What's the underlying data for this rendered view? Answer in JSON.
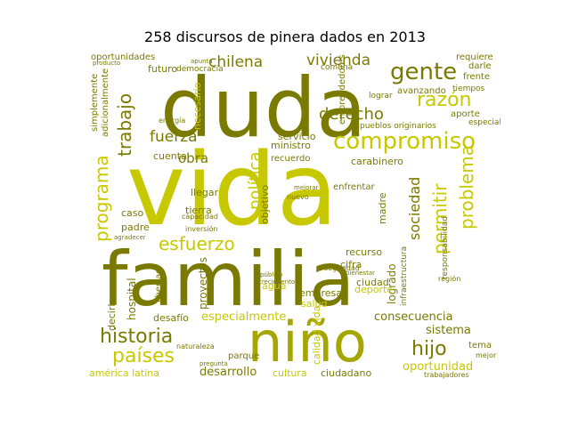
{
  "title": "258 discursos de pinera dados en 2013",
  "palette": {
    "dark": "#7a7a00",
    "mid": "#a6a600",
    "light": "#c8c800"
  },
  "words": {
    "duda": "duda",
    "vida": "vida",
    "familia": "familia",
    "nino": "niño",
    "compromiso": "compromiso",
    "gente": "gente",
    "derecho": "derecho",
    "razon": "razón",
    "trabajo": "trabajo",
    "programa": "programa",
    "esfuerzo": "esfuerzo",
    "historia": "historia",
    "paises": "países",
    "hijo": "hijo",
    "chilena": "chilena",
    "vivienda": "vivienda",
    "fuerza": "fuerza",
    "obra": "obra",
    "politica": "política",
    "sociedad": "sociedad",
    "permitir": "permitir",
    "problema": "problema",
    "oportunidad": "oportunidad",
    "desarrollo": "desarrollo",
    "cultura": "cultura",
    "ciudadano": "ciudadano",
    "america_latina": "américa latina",
    "consecuencia": "consecuencia",
    "especialmente": "especialmente",
    "sistema": "sistema",
    "desafio": "desafío",
    "hospital": "hospital",
    "agua": "agua",
    "salud": "salud",
    "ciudad": "ciudad",
    "deporte": "deporte",
    "cifra": "cifra",
    "recurso": "recurso",
    "logrado": "logrado",
    "empresa": "empresa",
    "proyectos": "proyectos",
    "llegar": "llegar",
    "tierra": "tierra",
    "padre": "padre",
    "caso": "caso",
    "cuenta": "cuenta",
    "futuro": "futuro",
    "ministro": "ministro",
    "servicio": "servicio",
    "recuerdo": "recuerdo",
    "carabinero": "carabinero",
    "enfrentar": "enfrentar",
    "objetivo": "objetivo",
    "madre": "madre",
    "necesario": "necesario",
    "oportunidades": "oportunidades",
    "simplemente": "simplemente",
    "adicionalmente": "adicionalmente",
    "aporte": "aporte",
    "requiere": "requiere",
    "darle": "darle",
    "frente": "frente",
    "especial": "especial",
    "tema": "tema",
    "parque": "parque",
    "decirle": "decirle",
    "libertad": "libertad",
    "comuna": "comuna",
    "democracia": "democracia",
    "avanzando": "avanzando",
    "tiempos": "tiempos",
    "lograr": "lograr",
    "pueblos_originarios": "pueblos originarios",
    "emprendedores": "emprendedores",
    "responsabilidad": "responsabilidad",
    "infraestructura": "infraestructura",
    "calidad_vida": "calidad vida",
    "seguridad": "seguridad",
    "mejor": "mejor",
    "trabajadores": "trabajadores",
    "capacidad": "capacidad",
    "inversion": "inversión",
    "nuevo": "nuevo",
    "region": "región",
    "producto": "producto",
    "apunta": "apunta",
    "naturaleza": "naturaleza",
    "pregunta": "pregunta",
    "agradecer": "agradecer",
    "energia": "energía",
    "crecimiento": "crecimiento",
    "publico": "público",
    "bienestar": "bienestar",
    "mejorar": "mejorar"
  }
}
